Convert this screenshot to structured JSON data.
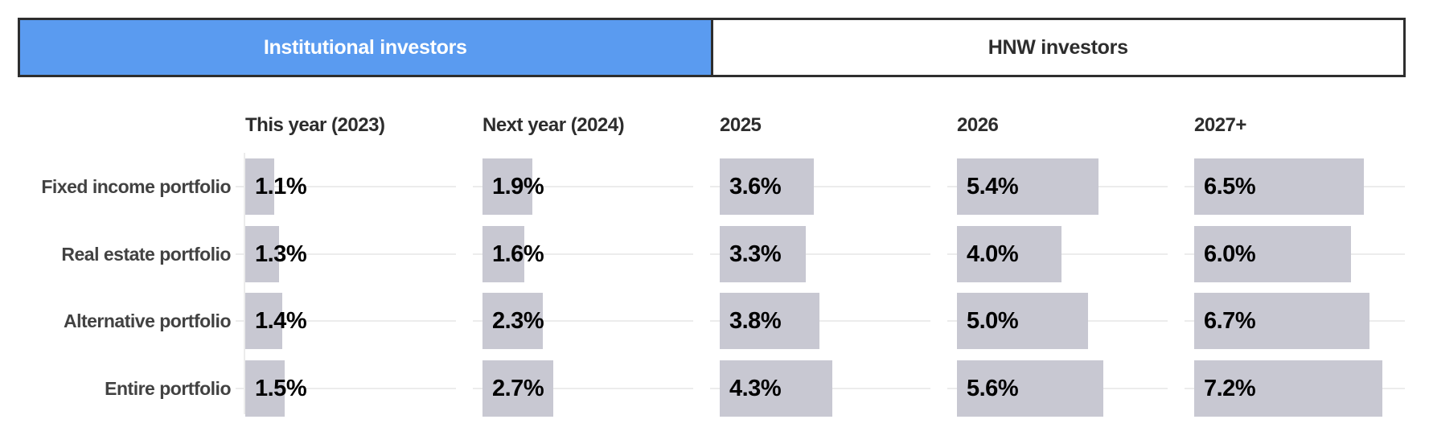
{
  "tabs": [
    {
      "label": "Institutional investors",
      "active": true
    },
    {
      "label": "HNW investors",
      "active": false
    }
  ],
  "colors": {
    "active_tab_bg": "#5a9bf0",
    "active_tab_text": "#ffffff",
    "inactive_tab_text": "#2d2d2d",
    "tab_border": "#2e2e2e",
    "bar_fill": "#c8c8d2",
    "gridline": "#ececec",
    "value_text": "#000000",
    "label_text": "#424242"
  },
  "chart_data": {
    "type": "bar",
    "orientation": "horizontal",
    "unit": "%",
    "title": "",
    "categories": [
      "Fixed income portfolio",
      "Real estate portfolio",
      "Alternative portfolio",
      "Entire portfolio"
    ],
    "series": [
      {
        "name": "This year (2023)",
        "values": [
          1.1,
          1.3,
          1.4,
          1.5
        ]
      },
      {
        "name": "Next year (2024)",
        "values": [
          1.9,
          1.6,
          2.3,
          2.7
        ]
      },
      {
        "name": "2025",
        "values": [
          3.6,
          3.3,
          3.8,
          4.3
        ]
      },
      {
        "name": "2026",
        "values": [
          5.4,
          4.0,
          5.0,
          5.6
        ]
      },
      {
        "name": "2027+",
        "values": [
          6.5,
          6.0,
          6.7,
          7.2
        ]
      }
    ],
    "xlim": [
      0,
      9
    ],
    "grid": "horizontal row line per column panel",
    "data_labels": true,
    "legend_position": "none"
  }
}
